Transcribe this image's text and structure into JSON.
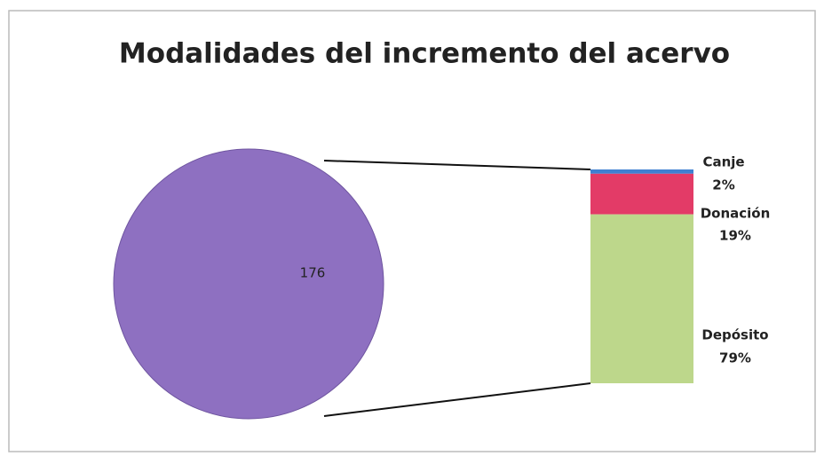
{
  "chart_data": {
    "type": "pie",
    "title": "Modalidades del incremento del acervo",
    "values": [
      176
    ],
    "color": "#8e70c1",
    "breakdown": {
      "categories": [
        "Canje",
        "Donación",
        "Depósito"
      ],
      "values": [
        2,
        19,
        79
      ],
      "value_labels": [
        "2%",
        "19%",
        "79%"
      ],
      "colors": [
        "#3f80d2",
        "#e33b67",
        "#bdd78b"
      ]
    }
  }
}
